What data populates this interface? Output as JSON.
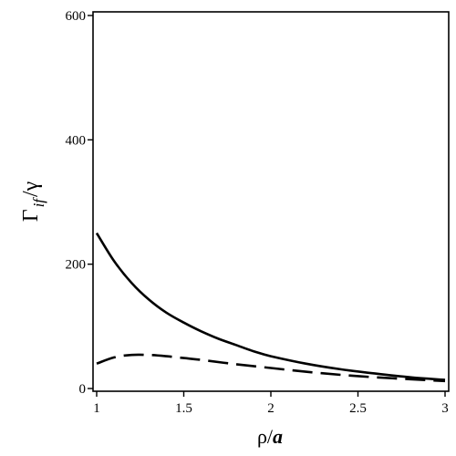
{
  "chart_data": {
    "type": "line",
    "title": "",
    "xlabel": {
      "main": "ρ/",
      "italic": "a"
    },
    "ylabel": {
      "main": "Γ",
      "sub": "if",
      "tail": "/γ"
    },
    "xlim": [
      1,
      3
    ],
    "ylim": [
      0,
      600
    ],
    "xticks": [
      1,
      1.5,
      2,
      2.5,
      3
    ],
    "xtick_labels": [
      "1",
      "1.5",
      "2",
      "2.5",
      "3"
    ],
    "yticks": [
      0,
      200,
      400,
      600
    ],
    "ytick_labels": [
      "0",
      "200",
      "400",
      "600"
    ],
    "grid": false,
    "legend": "none",
    "series": [
      {
        "style": "solid",
        "x": [
          1.0,
          1.1,
          1.2,
          1.3,
          1.4,
          1.5,
          1.6,
          1.7,
          1.8,
          1.9,
          2.0,
          2.2,
          2.4,
          2.6,
          2.8,
          3.0
        ],
        "y": [
          250,
          205,
          170,
          143,
          122,
          106,
          92,
          80,
          70,
          60,
          52,
          40,
          31,
          24,
          18,
          14
        ]
      },
      {
        "style": "dashed",
        "x": [
          1.0,
          1.1,
          1.2,
          1.3,
          1.4,
          1.5,
          1.6,
          1.8,
          2.0,
          2.2,
          2.4,
          2.6,
          2.8,
          3.0
        ],
        "y": [
          40,
          50,
          54,
          54,
          52,
          49,
          46,
          39,
          33,
          27,
          22,
          18,
          15,
          12
        ]
      }
    ]
  }
}
